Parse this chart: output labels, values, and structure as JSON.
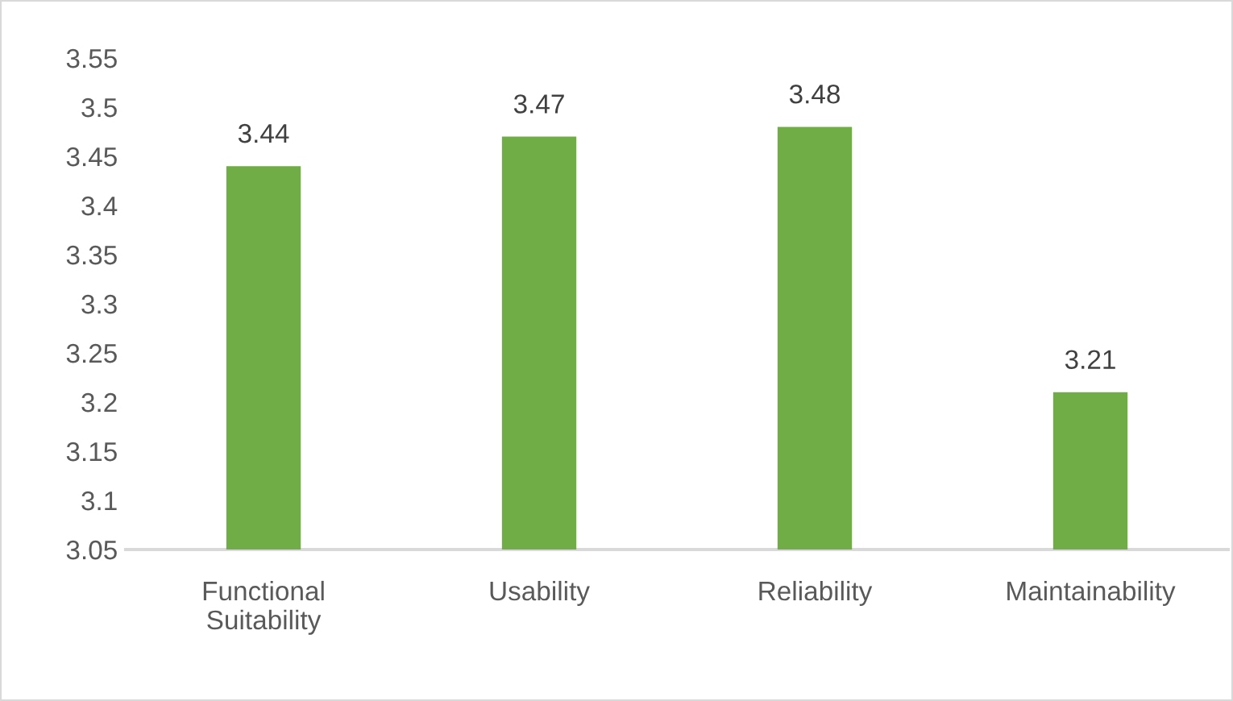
{
  "chart_data": {
    "type": "bar",
    "categories": [
      "Functional\nSuitability",
      "Usability",
      "Reliability",
      "Maintainability"
    ],
    "values": [
      3.44,
      3.47,
      3.48,
      3.21
    ],
    "color": "#70ad47",
    "ylim": [
      3.05,
      3.55
    ],
    "yticks": [
      3.05,
      3.1,
      3.15,
      3.2,
      3.25,
      3.3,
      3.35,
      3.4,
      3.45,
      3.5,
      3.55
    ],
    "data_labels": true,
    "grid": false,
    "legend": false
  }
}
